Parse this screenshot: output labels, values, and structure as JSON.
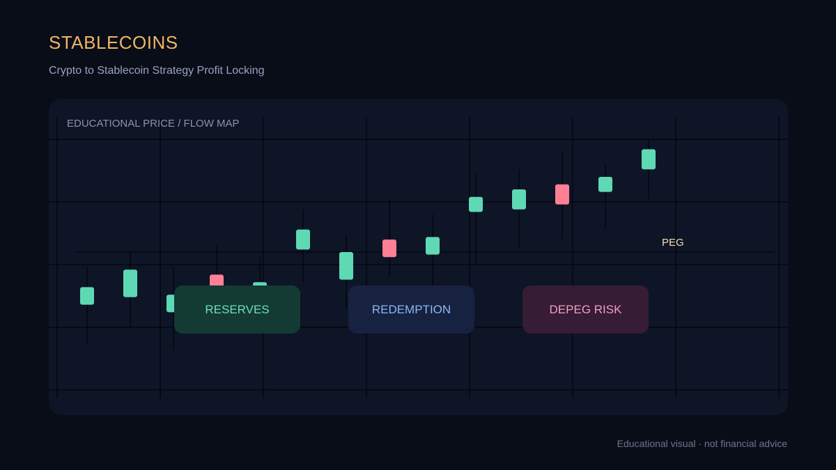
{
  "header": {
    "title": "STABLECOINS",
    "subtitle": "Crypto to Stablecoin Strategy Profit Locking"
  },
  "panel": {
    "label": "EDUCATIONAL PRICE / FLOW MAP"
  },
  "zones": [
    {
      "label": "RESERVES",
      "bg": "#143a34",
      "fg": "#6ee0bd"
    },
    {
      "label": "REDEMPTION",
      "bg": "#172240",
      "fg": "#8ab8f5"
    },
    {
      "label": "DEPEG RISK",
      "bg": "#361c34",
      "fg": "#f0a0c0"
    }
  ],
  "footer": {
    "note": "Educational visual · not financial advice"
  },
  "colors": {
    "up": "#5fd9b4",
    "down": "#ff7f95",
    "peg": "#f3e0b2",
    "grid": "#000000"
  },
  "chart_data": {
    "type": "candlestick",
    "title": "EDUCATIONAL PRICE / FLOW MAP",
    "xlabel": "",
    "ylabel": "",
    "grid": true,
    "ylim": [
      0,
      10
    ],
    "peg": {
      "label": "PEG",
      "value": 5.5
    },
    "candles": [
      {
        "open": 3.4,
        "close": 4.1,
        "high": 4.9,
        "low": 1.8,
        "dir": "up"
      },
      {
        "open": 3.7,
        "close": 4.8,
        "high": 5.5,
        "low": 2.5,
        "dir": "up"
      },
      {
        "open": 3.1,
        "close": 3.8,
        "high": 4.9,
        "low": 1.6,
        "dir": "up"
      },
      {
        "open": 4.6,
        "close": 3.8,
        "high": 5.8,
        "low": 3.2,
        "dir": "down"
      },
      {
        "open": 3.6,
        "close": 4.3,
        "high": 5.3,
        "low": 3.0,
        "dir": "up"
      },
      {
        "open": 5.6,
        "close": 6.4,
        "high": 7.2,
        "low": 4.3,
        "dir": "up"
      },
      {
        "open": 4.4,
        "close": 5.5,
        "high": 6.2,
        "low": 3.2,
        "dir": "up"
      },
      {
        "open": 6.0,
        "close": 5.3,
        "high": 7.6,
        "low": 4.5,
        "dir": "down"
      },
      {
        "open": 5.4,
        "close": 6.1,
        "high": 7.0,
        "low": 4.1,
        "dir": "up"
      },
      {
        "open": 7.1,
        "close": 7.7,
        "high": 8.6,
        "low": 5.0,
        "dir": "up"
      },
      {
        "open": 7.2,
        "close": 8.0,
        "high": 8.8,
        "low": 5.7,
        "dir": "up"
      },
      {
        "open": 8.2,
        "close": 7.4,
        "high": 9.5,
        "low": 6.0,
        "dir": "down"
      },
      {
        "open": 7.9,
        "close": 8.5,
        "high": 9.0,
        "low": 6.4,
        "dir": "up"
      },
      {
        "open": 8.8,
        "close": 9.6,
        "high": 10.0,
        "low": 7.6,
        "dir": "up"
      }
    ]
  }
}
